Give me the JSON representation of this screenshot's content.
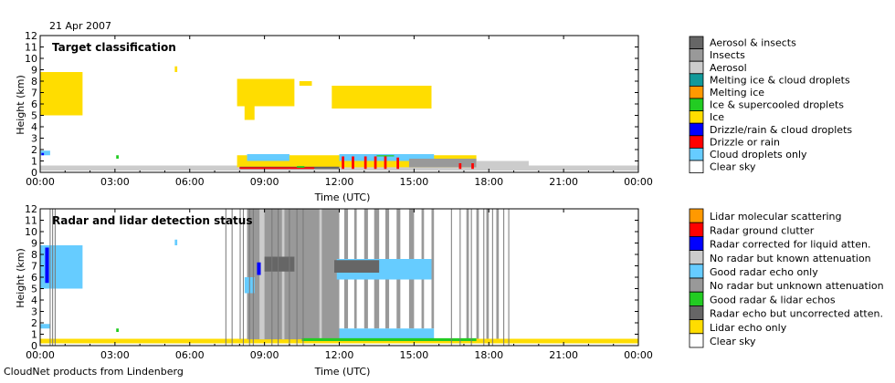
{
  "header": {
    "date": "21 Apr 2007"
  },
  "footer": {
    "credit": "CloudNet products from Lindenberg"
  },
  "colors": {
    "clear": "#ffffff",
    "cloud_droplets": "#66ccff",
    "drizzle_rain": "#ff0000",
    "drizzle_cloud": "#0000ff",
    "ice": "#ffdd00",
    "ice_supercooled": "#22cc22",
    "melting_ice": "#ff9900",
    "melting_ice_cloud": "#119999",
    "aerosol": "#cccccc",
    "insects": "#999999",
    "aerosol_insects": "#666666",
    "lidar_molecular": "#ff9900",
    "radar_clutter": "#ff0000",
    "radar_corrected": "#0000ff",
    "no_radar_known": "#cccccc",
    "good_radar_only": "#66ccff",
    "no_radar_unknown": "#999999",
    "good_radar_lidar": "#22cc22",
    "radar_uncorrected": "#666666",
    "lidar_only": "#ffdd00"
  },
  "chart_data": [
    {
      "type": "heatmap",
      "title": "Target classification",
      "xlabel": "Time (UTC)",
      "ylabel": "Height (km)",
      "x_ticks": [
        "00:00",
        "03:00",
        "06:00",
        "09:00",
        "12:00",
        "15:00",
        "18:00",
        "21:00",
        "00:00"
      ],
      "y_ticks": [
        "0",
        "1",
        "2",
        "3",
        "4",
        "5",
        "6",
        "7",
        "8",
        "9",
        "10",
        "11",
        "12"
      ],
      "xlim_hours": [
        0,
        24
      ],
      "ylim_km": [
        0,
        12
      ],
      "legend": [
        {
          "label": "Aerosol & insects",
          "color": "#666666"
        },
        {
          "label": "Insects",
          "color": "#999999"
        },
        {
          "label": "Aerosol",
          "color": "#cccccc"
        },
        {
          "label": "Melting ice & cloud droplets",
          "color": "#119999"
        },
        {
          "label": "Melting ice",
          "color": "#ff9900"
        },
        {
          "label": "Ice & supercooled droplets",
          "color": "#22cc22"
        },
        {
          "label": "Ice",
          "color": "#ffdd00"
        },
        {
          "label": "Drizzle/rain & cloud droplets",
          "color": "#0000ff"
        },
        {
          "label": "Drizzle or rain",
          "color": "#ff0000"
        },
        {
          "label": "Cloud droplets only",
          "color": "#66ccff"
        },
        {
          "label": "Clear sky",
          "color": "#ffffff"
        }
      ],
      "regions": [
        {
          "cls": "aerosol",
          "t0": 0.0,
          "t1": 24.0,
          "h0": 0.15,
          "h1": 0.6
        },
        {
          "cls": "ice",
          "t0": 0.0,
          "t1": 1.7,
          "h0": 5.0,
          "h1": 8.8
        },
        {
          "cls": "ice",
          "t0": 7.9,
          "t1": 10.2,
          "h0": 5.8,
          "h1": 8.2
        },
        {
          "cls": "ice",
          "t0": 11.7,
          "t1": 15.7,
          "h0": 5.6,
          "h1": 7.6
        },
        {
          "cls": "ice",
          "t0": 8.2,
          "t1": 8.6,
          "h0": 4.6,
          "h1": 5.8
        },
        {
          "cls": "ice",
          "t0": 5.4,
          "t1": 5.5,
          "h0": 8.8,
          "h1": 9.3
        },
        {
          "cls": "ice",
          "t0": 10.4,
          "t1": 10.9,
          "h0": 7.6,
          "h1": 8.0
        },
        {
          "cls": "ice",
          "t0": 7.9,
          "t1": 17.5,
          "h0": 0.45,
          "h1": 1.5
        },
        {
          "cls": "cloud_droplets",
          "t0": 8.3,
          "t1": 10.0,
          "h0": 1.0,
          "h1": 1.6
        },
        {
          "cls": "cloud_droplets",
          "t0": 12.0,
          "t1": 15.8,
          "h0": 1.0,
          "h1": 1.6
        },
        {
          "cls": "insects",
          "t0": 14.8,
          "t1": 17.5,
          "h0": 0.45,
          "h1": 1.2
        },
        {
          "cls": "aerosol_insects",
          "t0": 8.0,
          "t1": 12.0,
          "h0": 0.3,
          "h1": 0.5
        },
        {
          "cls": "drizzle_rain",
          "t0": 8.0,
          "t1": 11.0,
          "h0": 0.3,
          "h1": 0.45
        },
        {
          "cls": "drizzle_rain",
          "t0": 12.1,
          "t1": 12.2,
          "h0": 0.3,
          "h1": 1.4
        },
        {
          "cls": "drizzle_rain",
          "t0": 12.5,
          "t1": 12.6,
          "h0": 0.3,
          "h1": 1.4
        },
        {
          "cls": "drizzle_rain",
          "t0": 13.0,
          "t1": 13.1,
          "h0": 0.3,
          "h1": 1.4
        },
        {
          "cls": "drizzle_rain",
          "t0": 13.4,
          "t1": 13.5,
          "h0": 0.3,
          "h1": 1.4
        },
        {
          "cls": "drizzle_rain",
          "t0": 13.8,
          "t1": 13.9,
          "h0": 0.3,
          "h1": 1.4
        },
        {
          "cls": "drizzle_rain",
          "t0": 14.3,
          "t1": 14.4,
          "h0": 0.3,
          "h1": 1.3
        },
        {
          "cls": "drizzle_rain",
          "t0": 16.8,
          "t1": 16.9,
          "h0": 0.3,
          "h1": 0.8
        },
        {
          "cls": "drizzle_rain",
          "t0": 17.3,
          "t1": 17.4,
          "h0": 0.3,
          "h1": 0.8
        },
        {
          "cls": "ice_supercooled",
          "t0": 10.3,
          "t1": 10.6,
          "h0": 0.4,
          "h1": 0.55
        },
        {
          "cls": "ice_supercooled",
          "t0": 13.5,
          "t1": 14.2,
          "h0": 1.4,
          "h1": 1.5
        },
        {
          "cls": "cloud_droplets",
          "t0": 0.0,
          "t1": 0.4,
          "h0": 1.5,
          "h1": 1.9
        },
        {
          "cls": "ice_supercooled",
          "t0": 3.05,
          "t1": 3.15,
          "h0": 1.2,
          "h1": 1.5
        },
        {
          "cls": "drizzle_cloud",
          "t0": 0.05,
          "t1": 0.15,
          "h0": 1.5,
          "h1": 1.7
        },
        {
          "cls": "aerosol",
          "t0": 17.5,
          "t1": 19.6,
          "h0": 0.45,
          "h1": 1.0
        }
      ]
    },
    {
      "type": "heatmap",
      "title": "Radar and lidar detection status",
      "xlabel": "Time (UTC)",
      "ylabel": "Height (km)",
      "x_ticks": [
        "00:00",
        "03:00",
        "06:00",
        "09:00",
        "12:00",
        "15:00",
        "18:00",
        "21:00",
        "00:00"
      ],
      "y_ticks": [
        "0",
        "1",
        "2",
        "3",
        "4",
        "5",
        "6",
        "7",
        "8",
        "9",
        "10",
        "11",
        "12"
      ],
      "xlim_hours": [
        0,
        24
      ],
      "ylim_km": [
        0,
        12
      ],
      "legend": [
        {
          "label": "Lidar molecular scattering",
          "color": "#ff9900"
        },
        {
          "label": "Radar ground clutter",
          "color": "#ff0000"
        },
        {
          "label": "Radar corrected for liquid atten.",
          "color": "#0000ff"
        },
        {
          "label": "No radar but known attenuation",
          "color": "#cccccc"
        },
        {
          "label": "Good radar echo only",
          "color": "#66ccff"
        },
        {
          "label": "No radar but unknown attenuation",
          "color": "#999999"
        },
        {
          "label": "Good radar & lidar echos",
          "color": "#22cc22"
        },
        {
          "label": "Radar echo but uncorrected atten.",
          "color": "#666666"
        },
        {
          "label": "Lidar echo only",
          "color": "#ffdd00"
        },
        {
          "label": "Clear sky",
          "color": "#ffffff"
        }
      ],
      "regions": [
        {
          "cls": "lidar_only",
          "t0": 0.0,
          "t1": 24.0,
          "h0": 0.2,
          "h1": 0.6
        },
        {
          "cls": "good_radar_only",
          "t0": 0.0,
          "t1": 1.7,
          "h0": 5.0,
          "h1": 8.8
        },
        {
          "cls": "radar_corrected",
          "t0": 0.2,
          "t1": 0.35,
          "h0": 5.5,
          "h1": 8.6
        },
        {
          "cls": "no_radar_unknown",
          "t0": 8.3,
          "t1": 12.0,
          "h0": 0.55,
          "h1": 12.0
        },
        {
          "cls": "no_radar_unknown",
          "t0": 8.0,
          "t1": 8.05,
          "h0": 0.55,
          "h1": 12.0
        },
        {
          "cls": "no_radar_unknown",
          "t0": 12.2,
          "t1": 12.35,
          "h0": 1.5,
          "h1": 12.0
        },
        {
          "cls": "no_radar_unknown",
          "t0": 12.6,
          "t1": 12.7,
          "h0": 1.5,
          "h1": 12.0
        },
        {
          "cls": "no_radar_unknown",
          "t0": 13.0,
          "t1": 13.15,
          "h0": 1.5,
          "h1": 12.0
        },
        {
          "cls": "no_radar_unknown",
          "t0": 13.4,
          "t1": 13.6,
          "h0": 1.5,
          "h1": 12.0
        },
        {
          "cls": "no_radar_unknown",
          "t0": 13.85,
          "t1": 14.0,
          "h0": 1.5,
          "h1": 12.0
        },
        {
          "cls": "no_radar_unknown",
          "t0": 14.3,
          "t1": 14.45,
          "h0": 1.5,
          "h1": 12.0
        },
        {
          "cls": "no_radar_unknown",
          "t0": 14.8,
          "t1": 15.0,
          "h0": 1.5,
          "h1": 12.0
        },
        {
          "cls": "no_radar_unknown",
          "t0": 15.3,
          "t1": 15.4,
          "h0": 1.5,
          "h1": 12.0
        },
        {
          "cls": "no_radar_unknown",
          "t0": 15.7,
          "t1": 15.8,
          "h0": 1.5,
          "h1": 12.0
        },
        {
          "cls": "no_radar_unknown",
          "t0": 17.1,
          "t1": 17.2,
          "h0": 0.6,
          "h1": 12.0
        },
        {
          "cls": "no_radar_unknown",
          "t0": 17.5,
          "t1": 17.6,
          "h0": 0.6,
          "h1": 12.0
        },
        {
          "cls": "no_radar_unknown",
          "t0": 17.9,
          "t1": 18.0,
          "h0": 0.6,
          "h1": 12.0
        },
        {
          "cls": "no_radar_unknown",
          "t0": 18.3,
          "t1": 18.4,
          "h0": 0.6,
          "h1": 12.0
        },
        {
          "cls": "no_radar_known",
          "t0": 8.8,
          "t1": 9.0,
          "h0": 0.55,
          "h1": 12.0
        },
        {
          "cls": "no_radar_known",
          "t0": 9.7,
          "t1": 9.8,
          "h0": 0.55,
          "h1": 12.0
        },
        {
          "cls": "no_radar_known",
          "t0": 11.2,
          "t1": 11.3,
          "h0": 0.55,
          "h1": 12.0
        },
        {
          "cls": "good_radar_only",
          "t0": 11.9,
          "t1": 15.7,
          "h0": 5.8,
          "h1": 7.6
        },
        {
          "cls": "good_radar_only",
          "t0": 12.0,
          "t1": 15.8,
          "h0": 0.5,
          "h1": 1.5
        },
        {
          "cls": "good_radar_only",
          "t0": 8.2,
          "t1": 8.6,
          "h0": 4.6,
          "h1": 6.0
        },
        {
          "cls": "radar_uncorrected",
          "t0": 9.0,
          "t1": 10.2,
          "h0": 6.5,
          "h1": 7.8
        },
        {
          "cls": "radar_uncorrected",
          "t0": 11.8,
          "t1": 13.6,
          "h0": 6.4,
          "h1": 7.5
        },
        {
          "cls": "radar_corrected",
          "t0": 8.7,
          "t1": 8.85,
          "h0": 6.2,
          "h1": 7.3
        },
        {
          "cls": "good_radar_lidar",
          "t0": 10.5,
          "t1": 17.5,
          "h0": 0.4,
          "h1": 0.65
        },
        {
          "cls": "good_radar_only",
          "t0": 5.4,
          "t1": 5.5,
          "h0": 8.8,
          "h1": 9.3
        },
        {
          "cls": "good_radar_lidar",
          "t0": 3.05,
          "t1": 3.15,
          "h0": 1.2,
          "h1": 1.5
        },
        {
          "cls": "good_radar_only",
          "t0": 0.0,
          "t1": 0.4,
          "h0": 1.5,
          "h1": 1.9
        }
      ],
      "gaps": [
        0.4,
        0.5,
        0.6,
        7.45,
        7.7,
        8.15,
        8.4,
        8.55,
        9.3,
        9.55,
        10.0,
        10.3,
        10.55,
        16.5,
        16.85,
        17.3,
        17.8,
        18.15,
        18.6,
        18.8
      ]
    }
  ]
}
